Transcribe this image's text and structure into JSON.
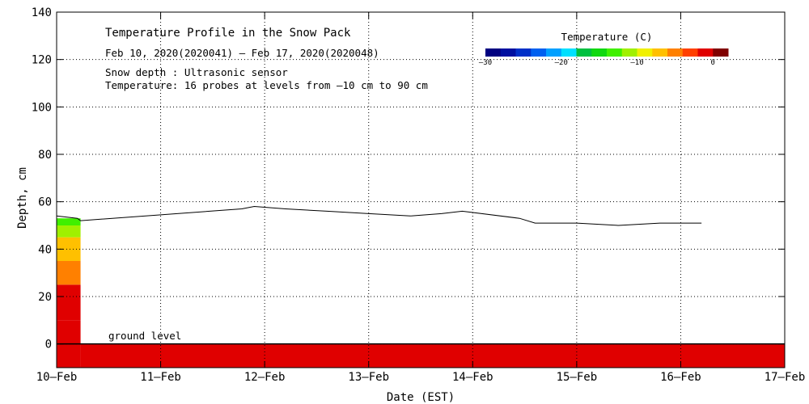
{
  "chart_data": {
    "type": "heatmap",
    "title": "Temperature Profile in the Snow Pack",
    "subtitle": "Feb 10, 2020(2020041) – Feb 17, 2020(2020048)",
    "notes": [
      "Snow depth : Ultrasonic sensor",
      "Temperature: 16 probes at levels from –10 cm to 90 cm"
    ],
    "annotation": "ground level",
    "xlabel": "Date (EST)",
    "ylabel": "Depth, cm",
    "x_ticks": [
      "10–Feb",
      "11–Feb",
      "12–Feb",
      "13–Feb",
      "14–Feb",
      "15–Feb",
      "16–Feb",
      "17–Feb"
    ],
    "xlim": [
      0,
      7
    ],
    "ylim": [
      -10,
      140
    ],
    "y_ticks": [
      0,
      20,
      40,
      60,
      80,
      100,
      120,
      140
    ],
    "grid": true,
    "colorbar": {
      "title": "Temperature (C)",
      "ticks": [
        "–30",
        "–20",
        "–10",
        "0"
      ],
      "range": [
        -30,
        2
      ],
      "colors": [
        "#000080",
        "#0010a0",
        "#0030c8",
        "#0060f0",
        "#00a0ff",
        "#00e0ff",
        "#00c040",
        "#10d810",
        "#40f000",
        "#a0f000",
        "#f0f000",
        "#ffc000",
        "#ff8000",
        "#ff4000",
        "#e00000",
        "#800000"
      ]
    },
    "snow_depth_series": [
      {
        "x": 0.0,
        "y": 54
      },
      {
        "x": 0.2,
        "y": 53
      },
      {
        "x": 0.23,
        "y": 52
      },
      {
        "x": 1.78,
        "y": 57
      },
      {
        "x": 1.9,
        "y": 58
      },
      {
        "x": 2.2,
        "y": 57
      },
      {
        "x": 2.6,
        "y": 56
      },
      {
        "x": 3.0,
        "y": 55
      },
      {
        "x": 3.4,
        "y": 54
      },
      {
        "x": 3.7,
        "y": 55
      },
      {
        "x": 3.9,
        "y": 56
      },
      {
        "x": 4.45,
        "y": 53
      },
      {
        "x": 4.6,
        "y": 51
      },
      {
        "x": 5.0,
        "y": 51
      },
      {
        "x": 5.4,
        "y": 50
      },
      {
        "x": 5.8,
        "y": 51
      },
      {
        "x": 6.2,
        "y": 51
      }
    ],
    "temperature_bands": [
      {
        "x0": 0.0,
        "x1": 0.23,
        "y0": -10,
        "y1": 0,
        "t": -2
      },
      {
        "x0": 0.0,
        "x1": 0.23,
        "y0": 0,
        "y1": 10,
        "t": -1
      },
      {
        "x0": 0.0,
        "x1": 0.23,
        "y0": 10,
        "y1": 25,
        "t": -2
      },
      {
        "x0": 0.0,
        "x1": 0.23,
        "y0": 25,
        "y1": 35,
        "t": -5
      },
      {
        "x0": 0.0,
        "x1": 0.23,
        "y0": 35,
        "y1": 45,
        "t": -8
      },
      {
        "x0": 0.0,
        "x1": 0.23,
        "y0": 45,
        "y1": 50,
        "t": -11
      },
      {
        "x0": 0.0,
        "x1": 0.23,
        "y0": 50,
        "y1": 53,
        "t": -14
      },
      {
        "x0": 0.23,
        "x1": 7.0,
        "y0": -10,
        "y1": 0,
        "t": -2
      }
    ]
  }
}
